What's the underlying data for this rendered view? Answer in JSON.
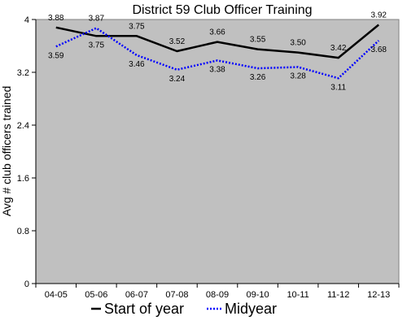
{
  "chart_data": {
    "type": "line",
    "title": "District 59 Club Officer Training",
    "xlabel": "",
    "ylabel": "Avg # club officers trained",
    "categories": [
      "04-05",
      "05-06",
      "06-07",
      "07-08",
      "08-09",
      "09-10",
      "10-11",
      "11-12",
      "12-13"
    ],
    "ylim": [
      0,
      4
    ],
    "yticks": [
      "0",
      "0.8",
      "1.6",
      "2.4",
      "3.2",
      "4"
    ],
    "grid": false,
    "legend_position": "bottom",
    "plot_background": "#c0c0c0",
    "series": [
      {
        "name": "Start of year",
        "values": [
          3.88,
          3.75,
          3.75,
          3.52,
          3.66,
          3.55,
          3.5,
          3.42,
          3.92
        ],
        "labels": [
          "3.88",
          "3.75",
          "3.75",
          "3.52",
          "3.66",
          "3.55",
          "3.50",
          "3.42",
          "3.92"
        ],
        "color": "#000000",
        "line_style": "solid"
      },
      {
        "name": "Midyear",
        "values": [
          3.59,
          3.87,
          3.46,
          3.24,
          3.38,
          3.26,
          3.28,
          3.11,
          3.68
        ],
        "labels": [
          "3.59",
          "3.87",
          "3.46",
          "3.24",
          "3.38",
          "3.26",
          "3.28",
          "3.11",
          "3.68"
        ],
        "color": "#0000ff",
        "line_style": "dotted"
      }
    ]
  }
}
